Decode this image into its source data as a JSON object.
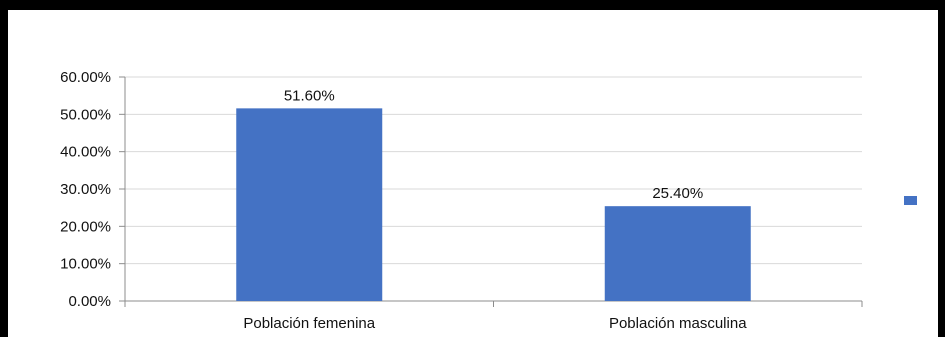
{
  "chart_data": {
    "type": "bar",
    "categories": [
      "Población femenina",
      "Población masculina"
    ],
    "values": [
      51.6,
      25.4
    ],
    "data_labels": [
      "51.60%",
      "25.40%"
    ],
    "y_ticks": [
      "0.00%",
      "10.00%",
      "20.00%",
      "30.00%",
      "40.00%",
      "50.00%",
      "60.00%"
    ],
    "ylim": [
      0,
      60
    ],
    "grid": true,
    "legend_position": "right",
    "colors": {
      "bar": "#4472C4",
      "grid": "#d9d9d9",
      "axis": "#8c8c8c"
    }
  }
}
